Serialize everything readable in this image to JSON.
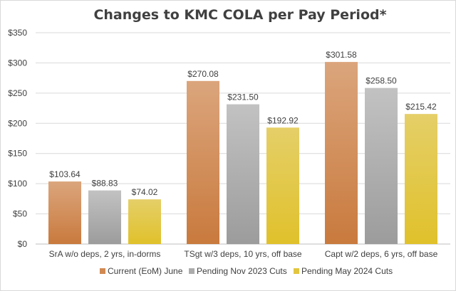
{
  "chart_data": {
    "type": "bar",
    "title": "Changes to KMC COLA per Pay Period*",
    "xlabel": "",
    "ylabel": "",
    "ylim": [
      0,
      350
    ],
    "ytick_step": 50,
    "yticks": [
      "$0",
      "$50",
      "$100",
      "$150",
      "$200",
      "$250",
      "$300",
      "$350"
    ],
    "grid": true,
    "legend_position": "bottom",
    "categories": [
      "SrA w/o deps, 2 yrs, in-dorms",
      "TSgt w/3 deps, 10 yrs, off base",
      "Capt w/2 deps, 6 yrs, off base"
    ],
    "series": [
      {
        "name": "Current (EoM) June",
        "values": [
          103.64,
          270.08,
          301.58
        ],
        "labels": [
          "$103.64",
          "$270.08",
          "$301.58"
        ],
        "color_top": "#dba57c",
        "color_bottom": "#c97a3d",
        "legend_color": "#d08a52"
      },
      {
        "name": "Pending Nov 2023 Cuts",
        "values": [
          88.83,
          231.5,
          258.5
        ],
        "labels": [
          "$88.83",
          "$231.50",
          "$258.50"
        ],
        "color_top": "#c2c2c2",
        "color_bottom": "#9c9c9c",
        "legend_color": "#acacac"
      },
      {
        "name": "Pending May 2024 Cuts",
        "values": [
          74.02,
          192.92,
          215.42
        ],
        "labels": [
          "$74.02",
          "$192.92",
          "$215.42"
        ],
        "color_top": "#e5cf68",
        "color_bottom": "#e0c12b",
        "legend_color": "#e2c640"
      }
    ],
    "colors": {
      "gridline": "#d9d9d9",
      "axis_line": "#bfbfbf",
      "text": "#404040"
    }
  }
}
